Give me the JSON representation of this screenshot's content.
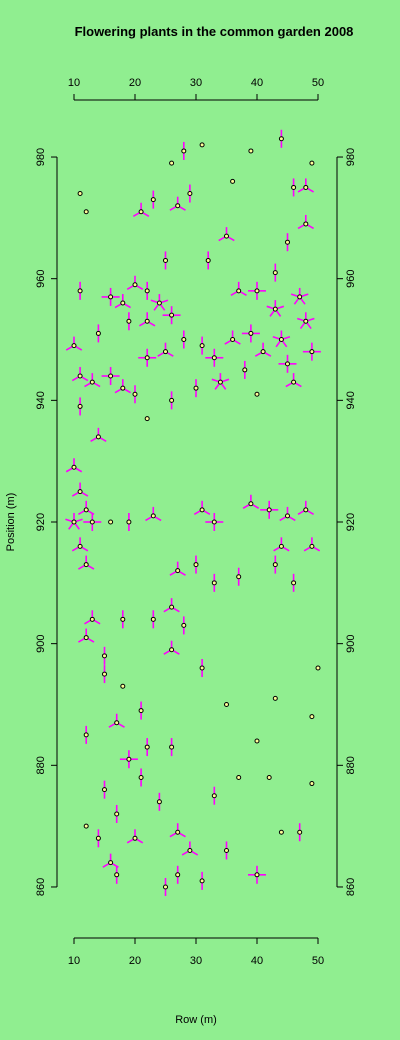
{
  "chart_data": {
    "type": "sunflower",
    "title": "Flowering plants in the common garden 2008",
    "xlabel": "Row (m)",
    "ylabel": "Position (m)",
    "color": "#000000",
    "petal_color": "#ff00ff",
    "background": "#90ee90",
    "xlim": [
      9,
      51
    ],
    "ylim": [
      856,
      984
    ],
    "xticks": [
      10,
      20,
      30,
      40,
      50
    ],
    "yticks": [
      860,
      880,
      900,
      920,
      940,
      960,
      980
    ],
    "x": [
      11,
      12,
      21,
      23,
      27,
      29,
      26,
      28,
      31,
      36,
      39,
      44,
      46,
      48,
      49,
      48,
      45,
      43,
      40,
      37,
      35,
      32,
      25,
      22,
      20,
      18,
      16,
      24,
      26,
      22,
      19,
      14,
      11,
      10,
      11,
      13,
      16,
      18,
      20,
      22,
      25,
      28,
      31,
      33,
      34,
      36,
      39,
      41,
      43,
      44,
      45,
      47,
      48,
      49,
      46,
      38,
      40,
      30,
      26,
      22,
      14,
      11,
      10,
      11,
      12,
      10,
      13,
      11,
      12,
      16,
      19,
      23,
      31,
      33,
      39,
      42,
      45,
      48,
      44,
      49,
      46,
      43,
      37,
      33,
      30,
      27,
      26,
      23,
      18,
      13,
      12,
      15,
      18,
      15,
      26,
      28,
      31,
      35,
      40,
      43,
      49,
      50,
      12,
      17,
      19,
      22,
      21,
      15,
      12,
      14,
      17,
      20,
      24,
      27,
      29,
      33,
      37,
      40,
      35,
      31,
      27,
      25,
      16,
      17,
      44,
      47,
      49,
      42,
      26,
      21
    ],
    "values": [
      974,
      971,
      971,
      973,
      972,
      974,
      979,
      981,
      982,
      976,
      981,
      983,
      975,
      975,
      979,
      969,
      966,
      961,
      958,
      958,
      967,
      963,
      963,
      958,
      959,
      956,
      957,
      956,
      954,
      953,
      953,
      951,
      958,
      949,
      944,
      943,
      944,
      942,
      941,
      947,
      948,
      950,
      949,
      947,
      943,
      950,
      951,
      948,
      955,
      950,
      946,
      957,
      953,
      948,
      943,
      945,
      941,
      942,
      940,
      937,
      934,
      939,
      929,
      925,
      922,
      920,
      920,
      916,
      913,
      920,
      920,
      921,
      922,
      920,
      923,
      922,
      921,
      922,
      916,
      916,
      910,
      913,
      911,
      910,
      913,
      912,
      906,
      904,
      904,
      904,
      901,
      898,
      893,
      895,
      899,
      903,
      896,
      890,
      884,
      891,
      888,
      896,
      885,
      887,
      881,
      883,
      878,
      876,
      870,
      868,
      872,
      868,
      874,
      869,
      866,
      875,
      878,
      862,
      866,
      861,
      862,
      860,
      864,
      862,
      869,
      869,
      877,
      878,
      883,
      889
    ],
    "sizes": [
      1,
      1,
      3,
      2,
      3,
      2,
      1,
      2,
      1,
      1,
      1,
      2,
      2,
      3,
      1,
      3,
      2,
      2,
      4,
      3,
      3,
      2,
      2,
      2,
      3,
      3,
      4,
      5,
      4,
      3,
      2,
      2,
      2,
      3,
      3,
      3,
      4,
      3,
      2,
      4,
      3,
      2,
      2,
      4,
      5,
      3,
      4,
      3,
      5,
      5,
      4,
      5,
      5,
      4,
      3,
      2,
      1,
      2,
      2,
      1,
      3,
      2,
      3,
      3,
      3,
      5,
      4,
      3,
      3,
      1,
      2,
      3,
      3,
      4,
      3,
      4,
      3,
      3,
      3,
      3,
      2,
      2,
      2,
      2,
      2,
      3,
      3,
      2,
      2,
      3,
      3,
      2,
      1,
      2,
      3,
      2,
      2,
      1,
      1,
      1,
      1,
      1,
      2,
      3,
      4,
      2,
      2,
      2,
      1,
      2,
      2,
      3,
      2,
      3,
      3,
      2,
      1,
      4,
      2,
      2,
      2,
      2,
      3,
      2,
      1,
      2,
      1,
      1,
      2,
      2
    ]
  }
}
